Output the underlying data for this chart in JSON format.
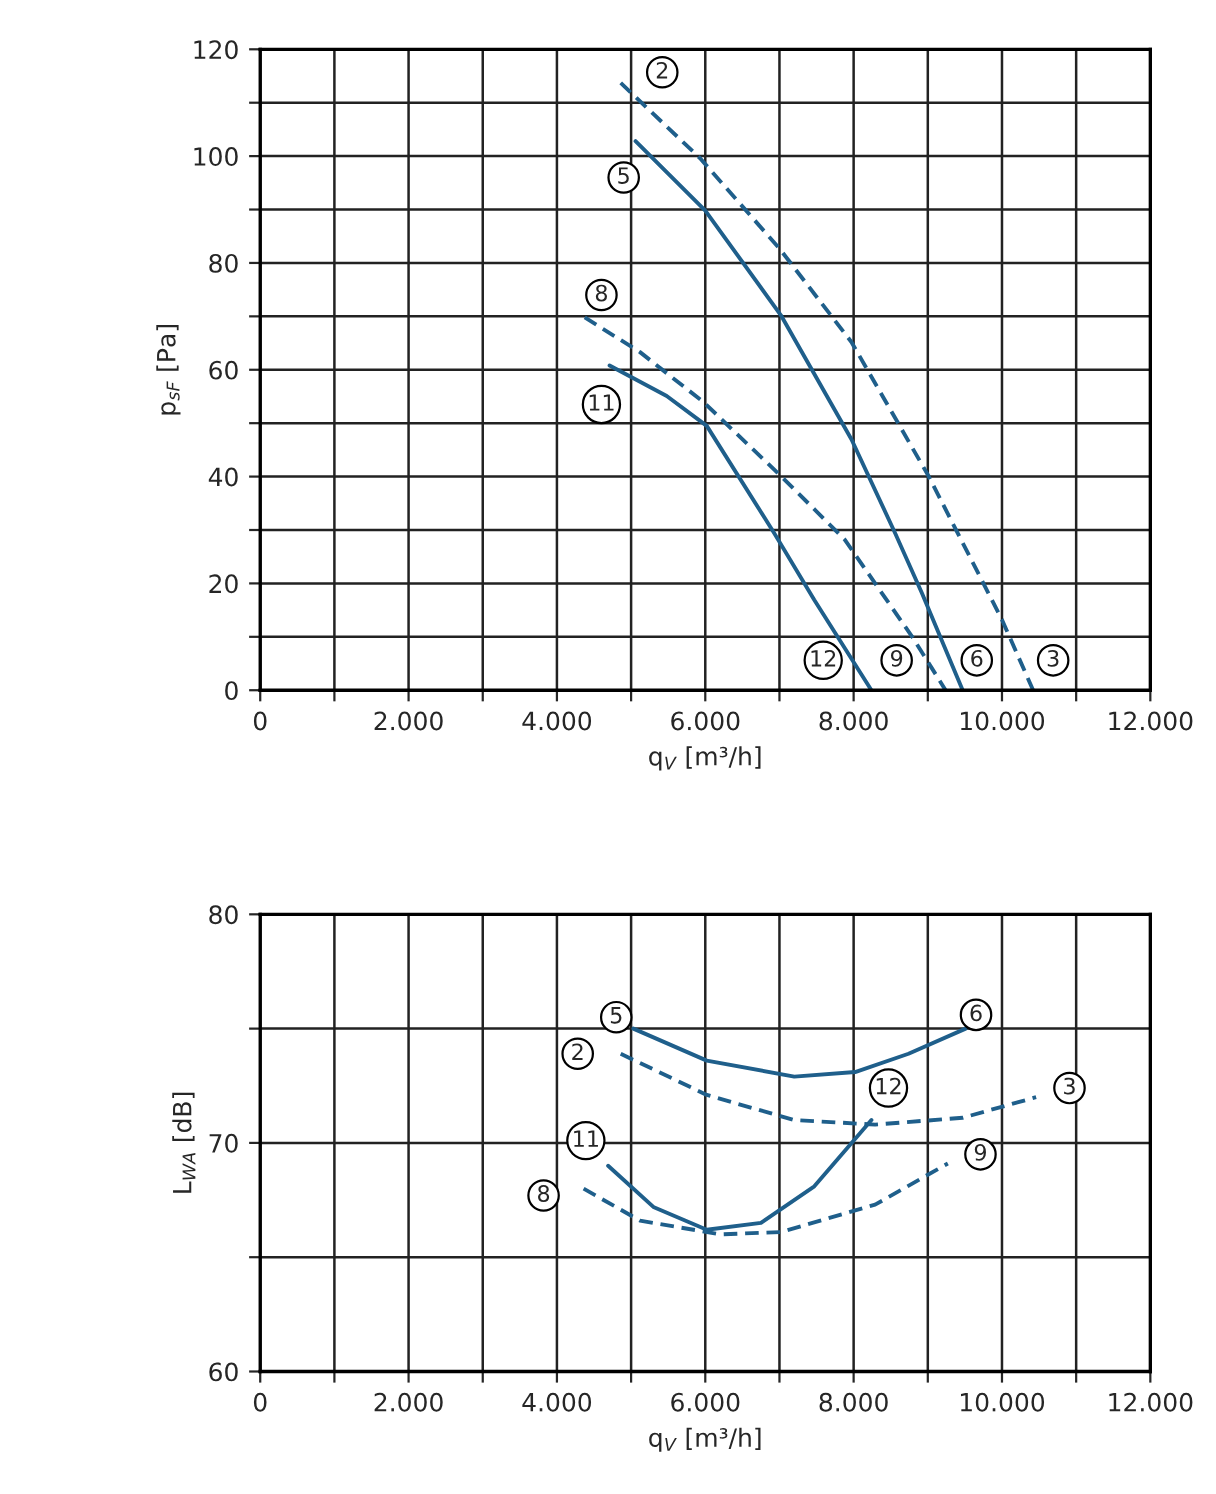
{
  "chart_data": [
    {
      "type": "line",
      "xlabel": "q$_{V}$ [m³/h]",
      "ylabel": "p$_{sF}$ [Pa]",
      "xlim": [
        0,
        12000
      ],
      "ylim": [
        0,
        120
      ],
      "xticks": [
        0,
        {
          "value": 1000,
          "label": null
        },
        {
          "value": 2000,
          "label": "2.000"
        },
        {
          "value": 3000,
          "label": null
        },
        {
          "value": 4000,
          "label": "4.000"
        },
        {
          "value": 5000,
          "label": null
        },
        {
          "value": 6000,
          "label": "6.000"
        },
        {
          "value": 7000,
          "label": null
        },
        {
          "value": 8000,
          "label": "8.000"
        },
        {
          "value": 9000,
          "label": null
        },
        {
          "value": 10000,
          "label": "10.000"
        },
        {
          "value": 11000,
          "label": null
        },
        {
          "value": 12000,
          "label": "12.000"
        }
      ],
      "yticks": [
        0,
        {
          "value": 10,
          "label": null
        },
        20,
        {
          "value": 30,
          "label": null
        },
        40,
        {
          "value": 50,
          "label": null
        },
        60,
        {
          "value": 70,
          "label": null
        },
        80,
        {
          "value": 90,
          "label": null
        },
        100,
        {
          "value": 110,
          "label": null
        },
        120
      ],
      "grid": true,
      "series": [
        {
          "color": "#1f5f8b",
          "line_style": "dashed",
          "x": [
            4860,
            5930,
            7000,
            7970,
            9010,
            10000,
            10420
          ],
          "values": [
            113.7,
            99.6,
            82.7,
            65.2,
            40.1,
            13.2,
            0
          ]
        },
        {
          "color": "#1f5f8b",
          "line_style": "solid",
          "x": [
            5060,
            6000,
            7020,
            7970,
            8560,
            8920,
            9470
          ],
          "values": [
            102.8,
            89.8,
            70.2,
            47,
            29.4,
            18.2,
            0
          ]
        },
        {
          "color": "#1f5f8b",
          "line_style": "dashed",
          "x": [
            4375,
            5120,
            5980,
            7020,
            7880,
            8790,
            9240
          ],
          "values": [
            69.8,
            63.3,
            53.9,
            40.1,
            28.2,
            10,
            0
          ]
        },
        {
          "color": "#1f5f8b",
          "line_style": "solid",
          "x": [
            4710,
            5480,
            6020,
            6930,
            7470,
            8240
          ],
          "values": [
            60.8,
            55.1,
            49.5,
            29.4,
            16.9,
            0
          ]
        }
      ],
      "annotations": [
        {
          "text": "2",
          "x": 5420,
          "y": 115.7
        },
        {
          "text": "5",
          "x": 4900,
          "y": 96
        },
        {
          "text": "8",
          "x": 4600,
          "y": 74
        },
        {
          "text": "11",
          "x": 4600,
          "y": 53.5
        },
        {
          "text": "12",
          "x": 7590,
          "y": 5.6
        },
        {
          "text": "9",
          "x": 8580,
          "y": 5.6
        },
        {
          "text": "6",
          "x": 9660,
          "y": 5.6
        },
        {
          "text": "3",
          "x": 10690,
          "y": 5.6
        }
      ]
    },
    {
      "type": "line",
      "xlabel": "q$_{V}$ [m³/h]",
      "ylabel": "L$_{WA}$ [dB]",
      "xlim": [
        0,
        12000
      ],
      "ylim": [
        60,
        80
      ],
      "xticks": [
        0,
        {
          "value": 1000,
          "label": null
        },
        {
          "value": 2000,
          "label": "2.000"
        },
        {
          "value": 3000,
          "label": null
        },
        {
          "value": 4000,
          "label": "4.000"
        },
        {
          "value": 5000,
          "label": null
        },
        {
          "value": 6000,
          "label": "6.000"
        },
        {
          "value": 7000,
          "label": null
        },
        {
          "value": 8000,
          "label": "8.000"
        },
        {
          "value": 9000,
          "label": null
        },
        {
          "value": 10000,
          "label": "10.000"
        },
        {
          "value": 11000,
          "label": null
        },
        {
          "value": 12000,
          "label": "12.000"
        }
      ],
      "yticks": [
        60,
        {
          "value": 65,
          "label": null
        },
        70,
        {
          "value": 75,
          "label": null
        },
        80
      ],
      "grid": true,
      "series": [
        {
          "color": "#1f5f8b",
          "line_style": "solid",
          "x": [
            5030,
            6020,
            7200,
            8020,
            8740,
            9510
          ],
          "values": [
            75.0,
            73.6,
            72.9,
            73.1,
            73.9,
            75.0
          ]
        },
        {
          "color": "#1f5f8b",
          "line_style": "dashed",
          "x": [
            4860,
            6020,
            7200,
            8290,
            9470,
            10460
          ],
          "values": [
            73.9,
            72.1,
            71.0,
            70.8,
            71.1,
            72.0
          ]
        },
        {
          "color": "#1f5f8b",
          "line_style": "solid",
          "x": [
            4690,
            5300,
            6020,
            6750,
            7470,
            8240
          ],
          "values": [
            69.0,
            67.2,
            66.2,
            66.5,
            68.1,
            71.0
          ]
        },
        {
          "color": "#1f5f8b",
          "line_style": "dashed",
          "x": [
            4360,
            5120,
            6200,
            7020,
            8290,
            9270
          ],
          "values": [
            68.0,
            66.6,
            66.0,
            66.1,
            67.3,
            69.1
          ]
        }
      ],
      "annotations": [
        {
          "text": "5",
          "x": 4800,
          "y": 75.5
        },
        {
          "text": "2",
          "x": 4280,
          "y": 73.9
        },
        {
          "text": "11",
          "x": 4390,
          "y": 70.1
        },
        {
          "text": "8",
          "x": 3820,
          "y": 67.7
        },
        {
          "text": "6",
          "x": 9650,
          "y": 75.6
        },
        {
          "text": "12",
          "x": 8470,
          "y": 72.4
        },
        {
          "text": "3",
          "x": 10910,
          "y": 72.4
        },
        {
          "text": "9",
          "x": 9710,
          "y": 69.5
        }
      ]
    }
  ]
}
